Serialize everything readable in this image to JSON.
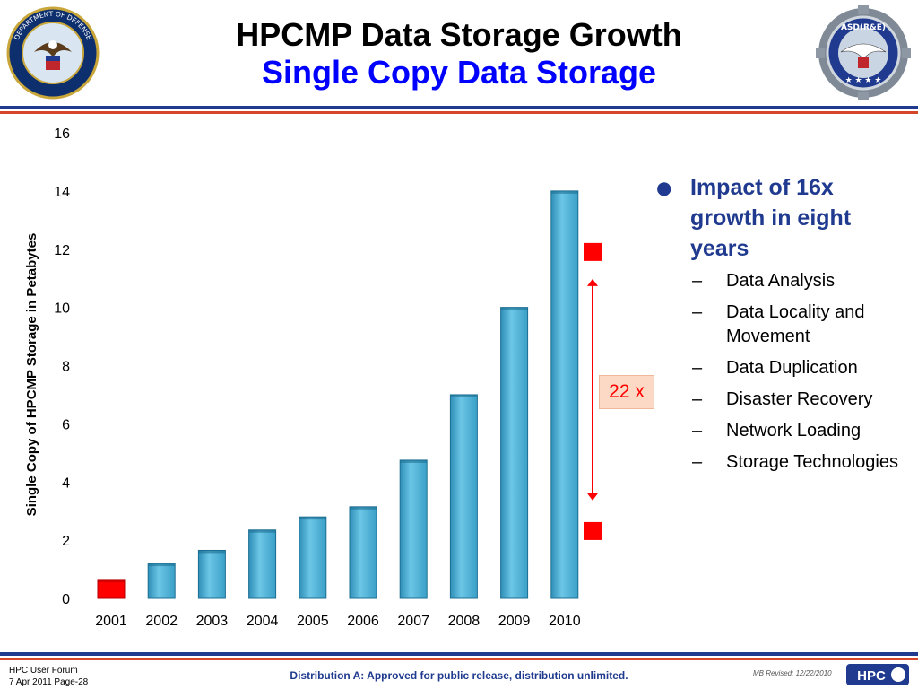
{
  "header": {
    "title": "HPCMP Data Storage Growth",
    "subtitle": "Single Copy Data Storage"
  },
  "logos": {
    "left": "department-of-defense-seal",
    "right": "asd-re-seal",
    "left_text": "DEPARTMENT OF DEFENSE · UNITED STATES OF AMERICA",
    "right_text": "ASD(R&E)",
    "hpc": "HPC"
  },
  "chart_data": {
    "type": "bar",
    "categories": [
      "2001",
      "2002",
      "2003",
      "2004",
      "2005",
      "2006",
      "2007",
      "2008",
      "2009",
      "2010"
    ],
    "values": [
      0.65,
      1.2,
      1.65,
      2.35,
      2.8,
      3.15,
      4.75,
      7.0,
      10.0,
      14.0
    ],
    "ylabel": "Single Copy of HPCMP Storage in Petabytes",
    "xlabel": "",
    "ylim": [
      0,
      16
    ],
    "yticks": [
      "0",
      "2",
      "4",
      "6",
      "8",
      "10",
      "12",
      "14",
      "16"
    ],
    "grid": false,
    "colors": {
      "bar": "#4fb3d9",
      "highlight": "#ff0000",
      "arrow": "#ff0000"
    },
    "highlighted_category": "2001",
    "annotation": "22 x"
  },
  "bullets": {
    "main": "Impact of 16x growth in eight years",
    "items": [
      "Data Analysis",
      "Data Locality and Movement",
      "Data Duplication",
      "Disaster Recovery",
      "Network Loading",
      "Storage Technologies"
    ],
    "dash": "–",
    "dot": "●"
  },
  "footer": {
    "left_line1": "HPC User Forum",
    "left_line2": "7 Apr 2011 Page-28",
    "center": "Distribution A:  Approved for public release, distribution unlimited.",
    "right": "MB Revised: 12/22/2010"
  }
}
